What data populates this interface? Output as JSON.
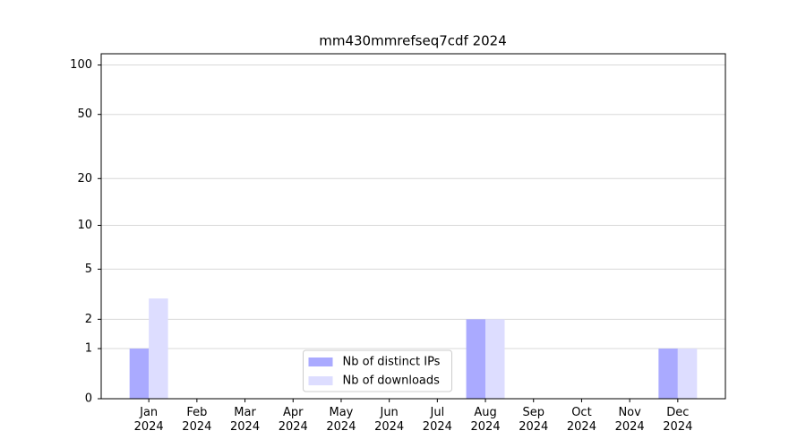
{
  "chart_data": {
    "type": "bar",
    "title": "mm430mmrefseq7cdf 2024",
    "categories": [
      "Jan\n2024",
      "Feb\n2024",
      "Mar\n2024",
      "Apr\n2024",
      "May\n2024",
      "Jun\n2024",
      "Jul\n2024",
      "Aug\n2024",
      "Sep\n2024",
      "Oct\n2024",
      "Nov\n2024",
      "Dec\n2024"
    ],
    "series": [
      {
        "name": "Nb of distinct IPs",
        "color": "#aaaaff",
        "values": [
          1,
          0,
          0,
          0,
          0,
          0,
          0,
          2,
          0,
          0,
          0,
          1
        ]
      },
      {
        "name": "Nb of downloads",
        "color": "#ddddff",
        "values": [
          3,
          0,
          0,
          0,
          0,
          0,
          0,
          2,
          0,
          0,
          0,
          1
        ]
      }
    ],
    "yscale": "symlog",
    "ylim": [
      0,
      117
    ],
    "yticks": [
      0,
      1,
      2,
      5,
      10,
      20,
      50,
      100
    ],
    "grid": true,
    "legend": "lower center"
  }
}
